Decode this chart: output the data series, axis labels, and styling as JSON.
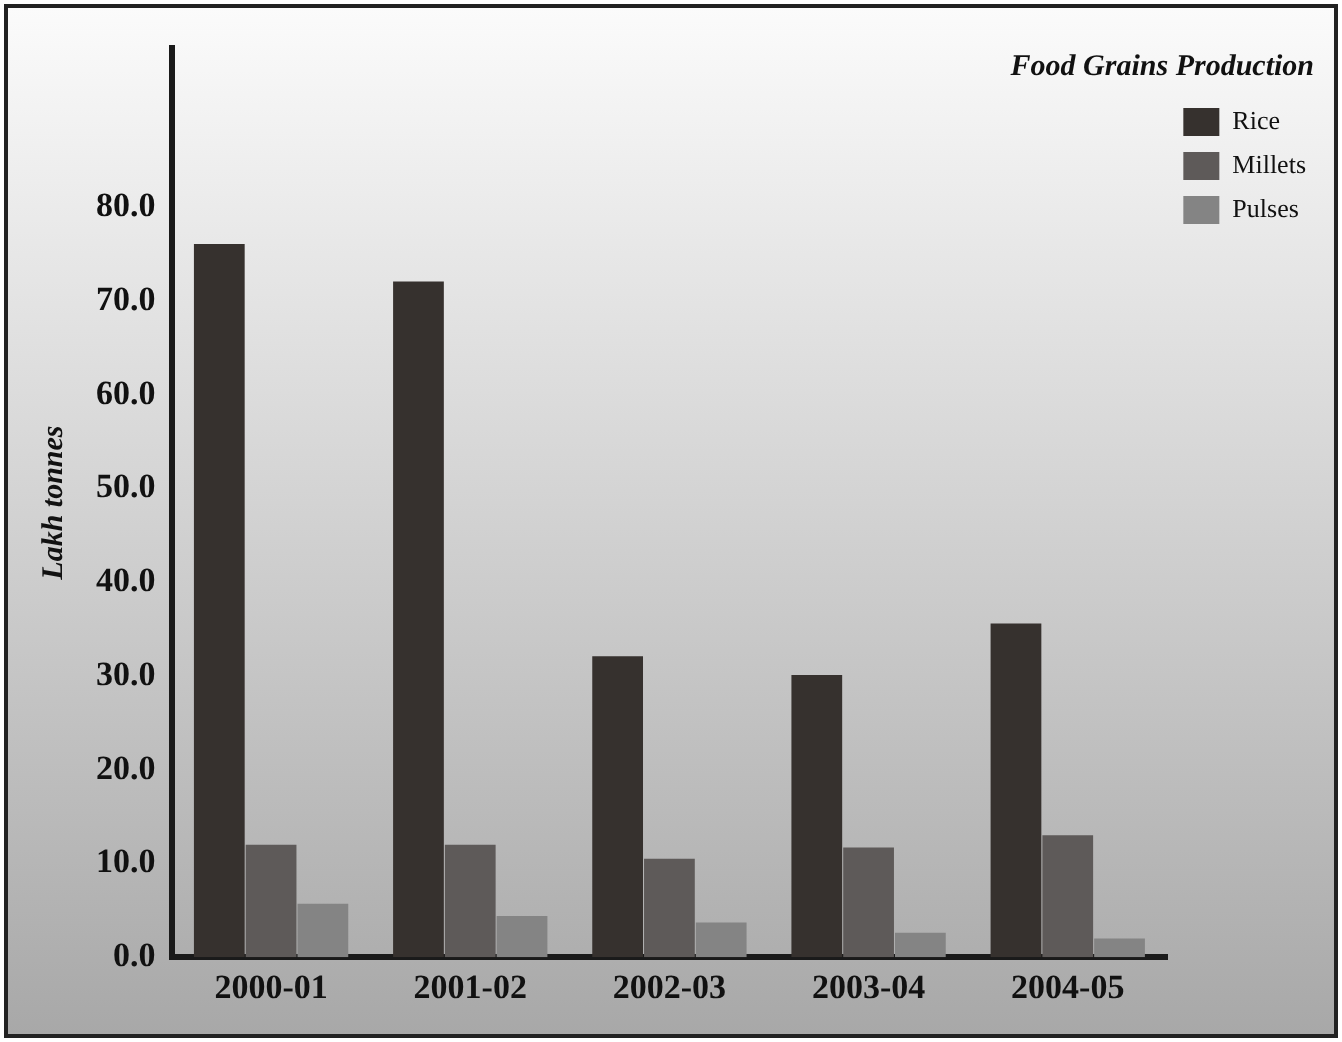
{
  "chart_data": {
    "type": "bar",
    "categories": [
      "2000-01",
      "2001-02",
      "2002-03",
      "2003-04",
      "2004-05"
    ],
    "series": [
      {
        "name": "Rice",
        "color": "#36312e",
        "values": [
          76.1,
          72.1,
          32.1,
          30.1,
          35.6
        ]
      },
      {
        "name": "Millets",
        "color": "#5e5a59",
        "values": [
          12.0,
          12.0,
          10.5,
          11.7,
          13.0
        ]
      },
      {
        "name": "Pulses",
        "color": "#848484",
        "values": [
          5.7,
          4.4,
          3.7,
          2.6,
          2.0
        ]
      }
    ],
    "ylabel": "Lakh tonnes",
    "legend_title": "Food Grains Production",
    "ylim": [
      0,
      97
    ],
    "yticks": [
      {
        "value": 0,
        "label": "0.0"
      },
      {
        "value": 10,
        "label": "10.0"
      },
      {
        "value": 20,
        "label": "20.0"
      },
      {
        "value": 30,
        "label": "30.0"
      },
      {
        "value": 40,
        "label": "40.0"
      },
      {
        "value": 50,
        "label": "50.0"
      },
      {
        "value": 60,
        "label": "60.0"
      },
      {
        "value": 70,
        "label": "70.0"
      },
      {
        "value": 80,
        "label": "80.0"
      }
    ],
    "grid": false,
    "legend": "top right"
  }
}
